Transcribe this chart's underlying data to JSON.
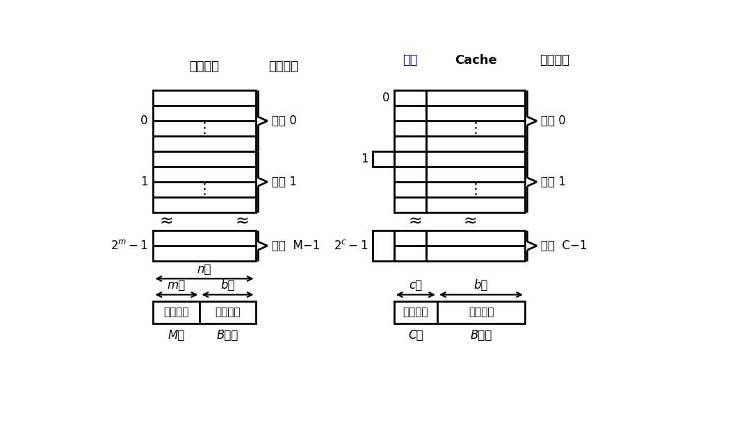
{
  "bg_color": "#ffffff",
  "line_color": "#000000",
  "label_color_blue": "#0000cc",
  "title_left": "主存储器",
  "title_left2": "主存块号",
  "title_right1": "标记",
  "title_right2": "Cache",
  "title_right3": "缓存块号",
  "label_0_left": "0",
  "label_1_left": "1",
  "label_0_right": "0",
  "label_1_right": "1",
  "zikuai0_left": "字块 0",
  "zikuai1_left": "字块 1",
  "zikuaiM1_left": "字块  M−1",
  "zikuai0_right": "字块 0",
  "zikuai1_right": "字块 1",
  "zikuaiC1_right": "字块  C−1",
  "nwei": "n位",
  "mwei": "m位",
  "bwei_left": "b位",
  "cwei": "c位",
  "bwei_right": "b位",
  "main_block_num": "主存块号",
  "inner_addr": "块内地址",
  "cache_block_num": "缓存块号",
  "inner_addr2": "块内地址",
  "M_blocks": "M块",
  "B_words": "B个字",
  "C_blocks": "C块",
  "B_words2": "B个字"
}
